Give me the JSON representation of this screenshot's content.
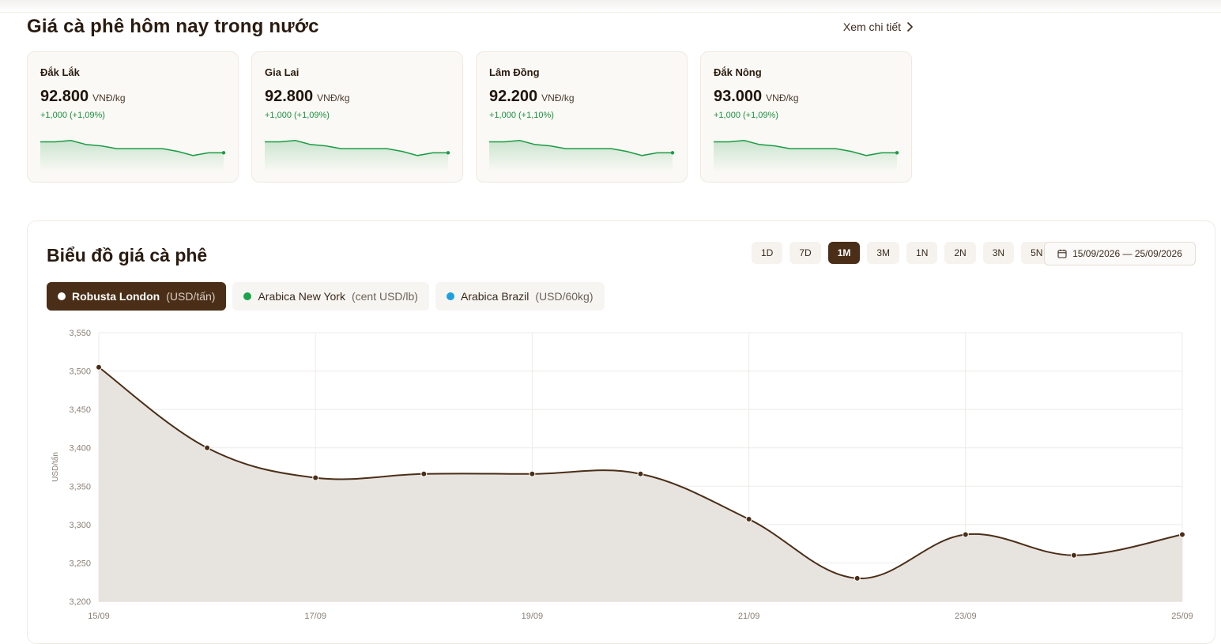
{
  "section": {
    "title": "Giá cà phê hôm nay trong nước",
    "see_more": "Xem chi tiết"
  },
  "cards": [
    {
      "name": "Đắk Lắk",
      "price": "92.800",
      "unit": "VNĐ/kg",
      "change": "+1,000 (+1,09%)"
    },
    {
      "name": "Gia Lai",
      "price": "92.800",
      "unit": "VNĐ/kg",
      "change": "+1,000 (+1,09%)"
    },
    {
      "name": "Lâm Đồng",
      "price": "92.200",
      "unit": "VNĐ/kg",
      "change": "+1,000 (+1,10%)"
    },
    {
      "name": "Đắk Nông",
      "price": "93.000",
      "unit": "VNĐ/kg",
      "change": "+1,000 (+1,09%)"
    }
  ],
  "chart_section": {
    "title": "Biểu đồ giá cà phê",
    "ranges": [
      "1D",
      "7D",
      "1M",
      "3M",
      "1N",
      "2N",
      "3N",
      "5N"
    ],
    "active_range": "1M",
    "date_range": "15/09/2026 — 25/09/2026",
    "series_tabs": [
      {
        "name": "Robusta London",
        "unit": "(USD/tấn)",
        "color": "#ffffff",
        "active": true
      },
      {
        "name": "Arabica New York",
        "unit": "(cent USD/lb)",
        "color": "#1aa34a",
        "active": false
      },
      {
        "name": "Arabica Brazil",
        "unit": "(USD/60kg)",
        "color": "#1ea0dc",
        "active": false
      }
    ]
  },
  "chart_data": {
    "type": "area",
    "ylabel": "USD/tấn",
    "ylim": [
      3200,
      3550
    ],
    "y_ticks": [
      "3,200",
      "3,250",
      "3,300",
      "3,350",
      "3,400",
      "3,450",
      "3,500",
      "3,550"
    ],
    "x_ticks": [
      "15/09",
      "17/09",
      "19/09",
      "21/09",
      "23/09",
      "25/09"
    ],
    "x": [
      "15/09",
      "16/09",
      "17/09",
      "18/09",
      "19/09",
      "20/09",
      "21/09",
      "22/09",
      "23/09",
      "24/09",
      "25/09"
    ],
    "series": [
      {
        "name": "Robusta London",
        "values": [
          3505,
          3400,
          3361,
          3366,
          3366,
          3366,
          3307,
          3230,
          3287,
          3260,
          3287
        ]
      }
    ],
    "line_color": "#4a2e17",
    "fill_color": "#e6e1dc",
    "grid": true
  },
  "sparkline": {
    "values": [
      93.6,
      93.6,
      93.7,
      93.4,
      93.3,
      93.1,
      93.1,
      93.1,
      93.1,
      92.9,
      92.6,
      92.8,
      92.8
    ],
    "color": "#1a9b45"
  }
}
